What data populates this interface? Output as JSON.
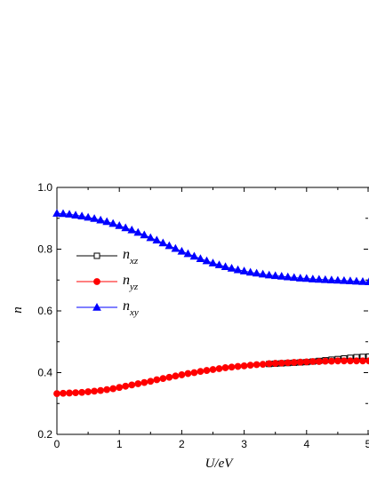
{
  "chart_data": {
    "type": "line",
    "xlabel": "U/eV",
    "ylabel": "n",
    "xlim": [
      0,
      5
    ],
    "ylim": [
      0.2,
      1.0
    ],
    "xticks": [
      "0",
      "1",
      "2",
      "3",
      "4",
      "5"
    ],
    "yticks": [
      "0.2",
      "0.4",
      "0.6",
      "0.8",
      "1.0"
    ],
    "grid": false,
    "legend_position": "left-middle",
    "series": [
      {
        "name": "n_xz",
        "legend_main": "n",
        "legend_sub": "xz",
        "marker": "open-square",
        "color": "#000000",
        "x": [
          3.4,
          3.5,
          3.6,
          3.7,
          3.8,
          3.9,
          4.0,
          4.1,
          4.2,
          4.3,
          4.4,
          4.5,
          4.6,
          4.7,
          4.8,
          4.9,
          5.0
        ],
        "values": [
          0.428,
          0.429,
          0.43,
          0.431,
          0.432,
          0.433,
          0.434,
          0.436,
          0.438,
          0.44,
          0.442,
          0.444,
          0.446,
          0.448,
          0.45,
          0.451,
          0.452
        ]
      },
      {
        "name": "n_yz",
        "legend_main": "n",
        "legend_sub": "yz",
        "marker": "filled-circle",
        "color": "#ff0000",
        "x": [
          0,
          0.1,
          0.2,
          0.3,
          0.4,
          0.5,
          0.6,
          0.7,
          0.8,
          0.9,
          1.0,
          1.1,
          1.2,
          1.3,
          1.4,
          1.5,
          1.6,
          1.7,
          1.8,
          1.9,
          2.0,
          2.1,
          2.2,
          2.3,
          2.4,
          2.5,
          2.6,
          2.7,
          2.8,
          2.9,
          3.0,
          3.1,
          3.2,
          3.3,
          3.4,
          3.5,
          3.6,
          3.7,
          3.8,
          3.9,
          4.0,
          4.1,
          4.2,
          4.3,
          4.4,
          4.5,
          4.6,
          4.7,
          4.8,
          4.9,
          5.0
        ],
        "values": [
          0.332,
          0.333,
          0.334,
          0.335,
          0.336,
          0.338,
          0.34,
          0.342,
          0.345,
          0.348,
          0.352,
          0.356,
          0.36,
          0.364,
          0.368,
          0.372,
          0.377,
          0.381,
          0.385,
          0.389,
          0.393,
          0.397,
          0.4,
          0.404,
          0.407,
          0.41,
          0.413,
          0.416,
          0.418,
          0.42,
          0.422,
          0.424,
          0.426,
          0.427,
          0.429,
          0.43,
          0.431,
          0.432,
          0.433,
          0.434,
          0.435,
          0.436,
          0.436,
          0.437,
          0.437,
          0.438,
          0.438,
          0.438,
          0.438,
          0.438,
          0.438
        ]
      },
      {
        "name": "n_xy",
        "legend_main": "n",
        "legend_sub": "xy",
        "marker": "filled-triangle",
        "color": "#0000ff",
        "x": [
          0,
          0.1,
          0.2,
          0.3,
          0.4,
          0.5,
          0.6,
          0.7,
          0.8,
          0.9,
          1.0,
          1.1,
          1.2,
          1.3,
          1.4,
          1.5,
          1.6,
          1.7,
          1.8,
          1.9,
          2.0,
          2.1,
          2.2,
          2.3,
          2.4,
          2.5,
          2.6,
          2.7,
          2.8,
          2.9,
          3.0,
          3.1,
          3.2,
          3.3,
          3.4,
          3.5,
          3.6,
          3.7,
          3.8,
          3.9,
          4.0,
          4.1,
          4.2,
          4.3,
          4.4,
          4.5,
          4.6,
          4.7,
          4.8,
          4.9,
          5.0
        ],
        "values": [
          0.916,
          0.915,
          0.913,
          0.91,
          0.907,
          0.903,
          0.899,
          0.894,
          0.889,
          0.883,
          0.876,
          0.869,
          0.862,
          0.854,
          0.846,
          0.837,
          0.829,
          0.82,
          0.811,
          0.802,
          0.793,
          0.785,
          0.777,
          0.769,
          0.762,
          0.755,
          0.749,
          0.743,
          0.738,
          0.733,
          0.729,
          0.725,
          0.722,
          0.719,
          0.716,
          0.714,
          0.712,
          0.71,
          0.708,
          0.706,
          0.705,
          0.703,
          0.702,
          0.701,
          0.7,
          0.699,
          0.698,
          0.697,
          0.696,
          0.695,
          0.694
        ]
      }
    ]
  }
}
